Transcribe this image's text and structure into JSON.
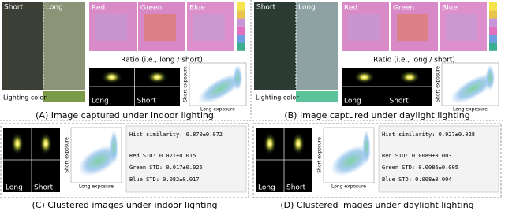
{
  "panels": [
    {
      "short_label": "Short",
      "long_label": "Long",
      "lighting_label": "Lighting color",
      "channels": [
        "Red",
        "Green",
        "Blue"
      ],
      "ratio_label": "Ratio (i.e., long / short)",
      "hist_labels": [
        "Long",
        "Short"
      ],
      "x_axis": "Long exposure",
      "y_axis": "Short exposure",
      "caption": "(A) Image captured under indoor lighting"
    },
    {
      "short_label": "Short",
      "long_label": "Long",
      "lighting_label": "Lighting color",
      "channels": [
        "Red",
        "Green",
        "Blue"
      ],
      "ratio_label": "Ratio (i.e., long / short)",
      "hist_labels": [
        "Long",
        "Short"
      ],
      "x_axis": "Long exposure",
      "y_axis": "Short exposure",
      "caption": "(B) Image captured under daylight lighting"
    }
  ],
  "clusters": [
    {
      "hist_labels": [
        "Long",
        "Short"
      ],
      "x_axis": "Long exposure",
      "y_axis": "Short exposure",
      "stats": [
        "Hist similarity: 0.870±0.072",
        "Red STD: 0.021±0.015",
        "Green STD: 0.017±0.026",
        "Blue STD: 0.082±0.017"
      ],
      "caption": "(C) Clustered images under indoor lighting"
    },
    {
      "hist_labels": [
        "Long",
        "Short"
      ],
      "x_axis": "Long exposure",
      "y_axis": "Short exposure",
      "stats": [
        "Hist similarity: 0.927±0.028",
        "Red STD: 0.0089±0.003",
        "Green STD: 0.0086±0.005",
        "Blue STD: 0.008±0.004"
      ],
      "caption": "(D) Clustered images under daylight lighting"
    }
  ]
}
